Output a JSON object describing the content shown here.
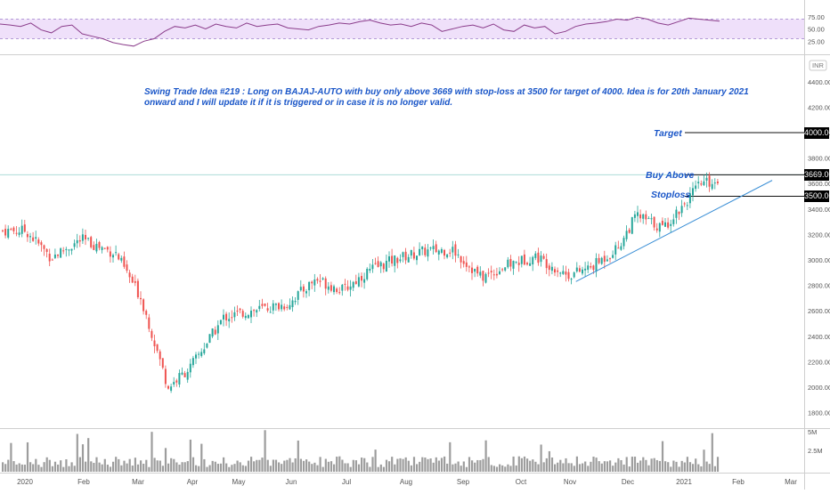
{
  "chart_data": {
    "type": "candlestick",
    "currency": "INR",
    "symbol": "BAJAJ-AUTO",
    "note": "Swing Trade Idea #219 : Long  on BAJAJ-AUTO  with buy  only above 3669 with stop-loss at 3500  for target of 4000. Idea is for  20th January 2021 onward and I will update it if it is triggered or in case it is no longer valid.",
    "price_axis": {
      "ticks": [
        "4400.00",
        "4200.00",
        "4000.00",
        "3800.00",
        "3600.00",
        "3400.00",
        "3200.00",
        "3000.00",
        "2800.00",
        "2600.00",
        "2400.00",
        "2200.00",
        "2000.00",
        "1800.00"
      ],
      "range": [
        1700,
        4520
      ]
    },
    "time_axis": {
      "ticks": [
        "2020",
        "Feb",
        "Mar",
        "Apr",
        "May",
        "Jun",
        "Jul",
        "Aug",
        "Sep",
        "Oct",
        "Nov",
        "Dec",
        "2021",
        "Feb",
        "Mar"
      ]
    },
    "levels": [
      {
        "label": "Target",
        "value": 4000,
        "tag": "4000.00"
      },
      {
        "label": "Buy Above",
        "value": 3669,
        "tag": "3669.00"
      },
      {
        "label": "Stoploss",
        "value": 3500,
        "tag": "3500.00"
      }
    ],
    "trendline": {
      "from": {
        "date": "2020-11-02",
        "price": 2830
      },
      "to": {
        "date": "2021-02-19",
        "price": 3625
      }
    },
    "monthly_closes": [
      {
        "date": "2020-01-01",
        "close": 3230
      },
      {
        "date": "2020-01-15",
        "close": 3020
      },
      {
        "date": "2020-02-01",
        "close": 3160
      },
      {
        "date": "2020-02-20",
        "close": 3050
      },
      {
        "date": "2020-03-05",
        "close": 2700
      },
      {
        "date": "2020-03-20",
        "close": 2000
      },
      {
        "date": "2020-04-01",
        "close": 2150
      },
      {
        "date": "2020-04-20",
        "close": 2550
      },
      {
        "date": "2020-05-05",
        "close": 2600
      },
      {
        "date": "2020-05-25",
        "close": 2650
      },
      {
        "date": "2020-06-10",
        "close": 2850
      },
      {
        "date": "2020-06-25",
        "close": 2760
      },
      {
        "date": "2020-07-10",
        "close": 2920
      },
      {
        "date": "2020-07-25",
        "close": 3010
      },
      {
        "date": "2020-08-10",
        "close": 3070
      },
      {
        "date": "2020-08-25",
        "close": 3080
      },
      {
        "date": "2020-09-10",
        "close": 2860
      },
      {
        "date": "2020-09-25",
        "close": 2960
      },
      {
        "date": "2020-10-10",
        "close": 3030
      },
      {
        "date": "2020-10-28",
        "close": 2880
      },
      {
        "date": "2020-11-10",
        "close": 2940
      },
      {
        "date": "2020-11-25",
        "close": 3100
      },
      {
        "date": "2020-12-05",
        "close": 3350
      },
      {
        "date": "2020-12-20",
        "close": 3250
      },
      {
        "date": "2021-01-01",
        "close": 3450
      },
      {
        "date": "2021-01-10",
        "close": 3600
      },
      {
        "date": "2021-01-20",
        "close": 3620
      }
    ],
    "rsi": {
      "ticks": [
        "75.00",
        "50.00",
        "25.00"
      ],
      "range": [
        0,
        100
      ],
      "overbought": 70,
      "oversold": 30,
      "values": [
        60,
        58,
        55,
        62,
        48,
        42,
        55,
        58,
        40,
        35,
        30,
        22,
        18,
        15,
        25,
        30,
        45,
        55,
        52,
        58,
        50,
        60,
        55,
        52,
        62,
        55,
        58,
        60,
        52,
        50,
        48,
        55,
        58,
        62,
        60,
        65,
        68,
        62,
        58,
        60,
        55,
        62,
        58,
        45,
        50,
        55,
        58,
        52,
        60,
        48,
        45,
        58,
        52,
        55,
        40,
        45,
        55,
        60,
        62,
        65,
        70,
        68,
        74,
        70,
        62,
        58,
        65,
        72,
        70,
        68,
        66
      ]
    },
    "volume": {
      "ticks": [
        "5M",
        "2.5M"
      ],
      "max": 5.5
    }
  }
}
